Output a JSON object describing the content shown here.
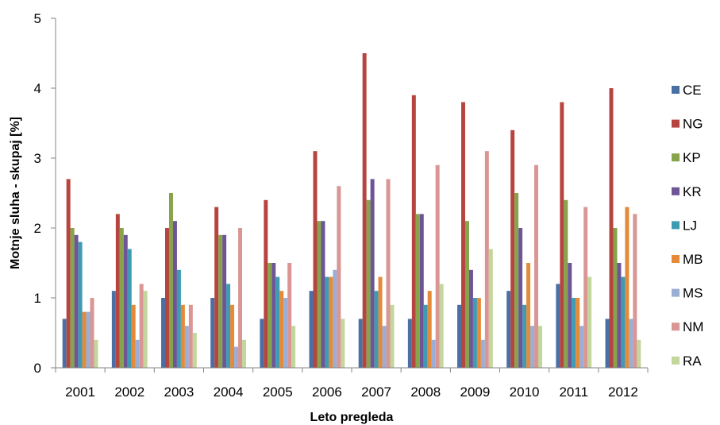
{
  "chart_data": {
    "type": "bar",
    "title": "",
    "xlabel": "Leto pregleda",
    "ylabel": "Motnje sluha - skupaj [%]",
    "ylim": [
      0,
      5
    ],
    "yticks": [
      "0",
      "1",
      "2",
      "3",
      "4",
      "5"
    ],
    "grid": false,
    "legend_position": "right",
    "categories": [
      "2001",
      "2002",
      "2003",
      "2004",
      "2005",
      "2006",
      "2007",
      "2008",
      "2009",
      "2010",
      "2011",
      "2012"
    ],
    "series": [
      {
        "name": "CE",
        "color": "#4a6fa5",
        "values": [
          0.7,
          1.1,
          1.0,
          1.0,
          0.7,
          1.1,
          0.7,
          0.7,
          0.9,
          1.1,
          1.2,
          0.7
        ]
      },
      {
        "name": "NG",
        "color": "#b64540",
        "values": [
          2.7,
          2.2,
          2.0,
          2.3,
          2.4,
          3.1,
          4.5,
          3.9,
          3.8,
          3.4,
          3.8,
          4.0
        ]
      },
      {
        "name": "KP",
        "color": "#87a34b",
        "values": [
          2.0,
          2.0,
          2.5,
          1.9,
          1.5,
          2.1,
          2.4,
          2.2,
          2.1,
          2.5,
          2.4,
          2.0
        ]
      },
      {
        "name": "KR",
        "color": "#6d5596",
        "values": [
          1.9,
          1.9,
          2.1,
          1.9,
          1.5,
          2.1,
          2.7,
          2.2,
          1.4,
          2.0,
          1.5,
          1.5
        ]
      },
      {
        "name": "LJ",
        "color": "#3f9bb3",
        "values": [
          1.8,
          1.7,
          1.4,
          1.2,
          1.3,
          1.3,
          1.1,
          0.9,
          1.0,
          0.9,
          1.0,
          1.3
        ]
      },
      {
        "name": "MB",
        "color": "#e58a38",
        "values": [
          0.8,
          0.9,
          0.9,
          0.9,
          1.1,
          1.3,
          1.3,
          1.1,
          1.0,
          1.5,
          1.0,
          2.3
        ]
      },
      {
        "name": "MS",
        "color": "#9aaed6",
        "values": [
          0.8,
          0.4,
          0.6,
          0.3,
          1.0,
          1.4,
          0.6,
          0.4,
          0.4,
          0.6,
          0.6,
          0.7
        ]
      },
      {
        "name": "NM",
        "color": "#d99694",
        "values": [
          1.0,
          1.2,
          0.9,
          2.0,
          1.5,
          2.6,
          2.7,
          2.9,
          3.1,
          2.9,
          2.3,
          2.2
        ]
      },
      {
        "name": "RA",
        "color": "#c3d69b",
        "values": [
          0.4,
          1.1,
          0.5,
          0.4,
          0.6,
          0.7,
          0.9,
          1.2,
          1.7,
          0.6,
          1.3,
          0.4
        ]
      }
    ]
  }
}
